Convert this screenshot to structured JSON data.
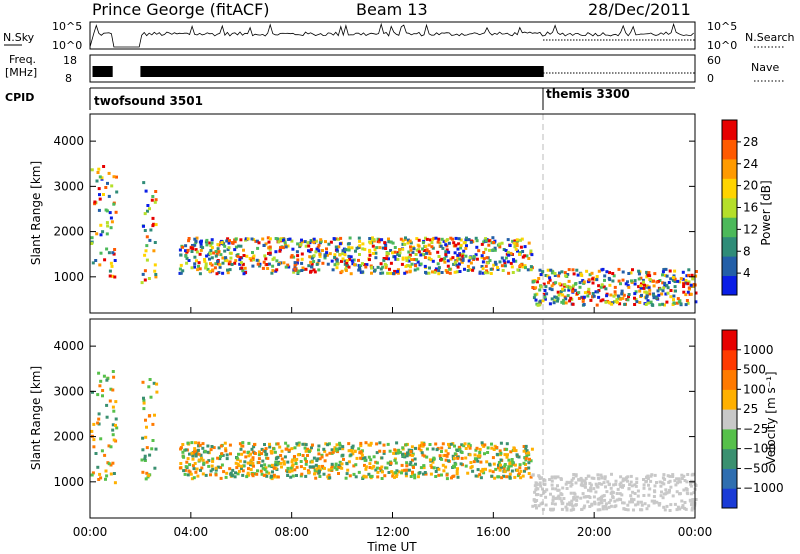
{
  "header": {
    "station": "Prince George (fitACF)",
    "beam": "Beam 13",
    "date": "28/Dec/2011"
  },
  "strips": {
    "nsky_label": "N.Sky",
    "nsky_ticks": [
      "10^5",
      "10^0"
    ],
    "nsearch_label": "N.Search",
    "nsearch_ticks": [
      "10^5",
      "10^0"
    ],
    "freq_label_line1": "Freq.",
    "freq_label_line2": "[MHz]",
    "freq_ticks": [
      "18",
      "8"
    ],
    "nave_label": "Nave",
    "nave_ticks": [
      "60",
      "0"
    ],
    "cpid_label": "CPID",
    "cpid_segments": [
      {
        "label": "twofsound 3501",
        "start_hour": 0
      },
      {
        "label": "themis 3300",
        "start_hour": 18
      }
    ]
  },
  "chart_data": [
    {
      "type": "heatmap",
      "title": "",
      "ylabel": "Slant Range [km]",
      "ylim": [
        200,
        4600
      ],
      "yticks": [
        "1000",
        "2000",
        "3000",
        "4000"
      ],
      "xlim": [
        0,
        24
      ],
      "colorbar": {
        "label": "Power [dB]",
        "ticks": [
          "4",
          "8",
          "12",
          "16",
          "20",
          "24",
          "28"
        ],
        "range": [
          0,
          30
        ],
        "colors": [
          "#0a1ee6",
          "#235fa8",
          "#2f8c78",
          "#4cb95a",
          "#b5df2a",
          "#ffd400",
          "#ff9a00",
          "#ff5a00",
          "#e60000"
        ]
      },
      "scatter_bands": [
        {
          "x_start": 0,
          "x_end": 1,
          "r_low": 1000,
          "r_high": 3500
        },
        {
          "x_start": 2,
          "x_end": 2.6,
          "r_low": 900,
          "r_high": 3300
        },
        {
          "x_start": 3.5,
          "x_end": 17.5,
          "r_low": 1100,
          "r_high": 1900
        },
        {
          "x_start": 17.5,
          "x_end": 24,
          "r_low": 400,
          "r_high": 1200
        }
      ]
    },
    {
      "type": "heatmap",
      "title": "",
      "xlabel": "Time UT",
      "ylabel": "Slant Range [km]",
      "ylim": [
        200,
        4600
      ],
      "yticks": [
        "1000",
        "2000",
        "3000",
        "4000"
      ],
      "xlim": [
        0,
        24
      ],
      "xticks": [
        "00:00",
        "04:00",
        "08:00",
        "12:00",
        "16:00",
        "20:00",
        "00:00"
      ],
      "colorbar": {
        "label": "Velocity [m s⁻¹]",
        "ticks": [
          "1000",
          "500",
          "100",
          "25",
          "−25",
          "−100",
          "−500",
          "−1000"
        ],
        "colors": [
          "#1a3bd6",
          "#2f6eb0",
          "#3a9070",
          "#56c04a",
          "#c8c8c8",
          "#ffb000",
          "#ff7a00",
          "#ff3a00",
          "#e60000"
        ]
      }
    }
  ]
}
